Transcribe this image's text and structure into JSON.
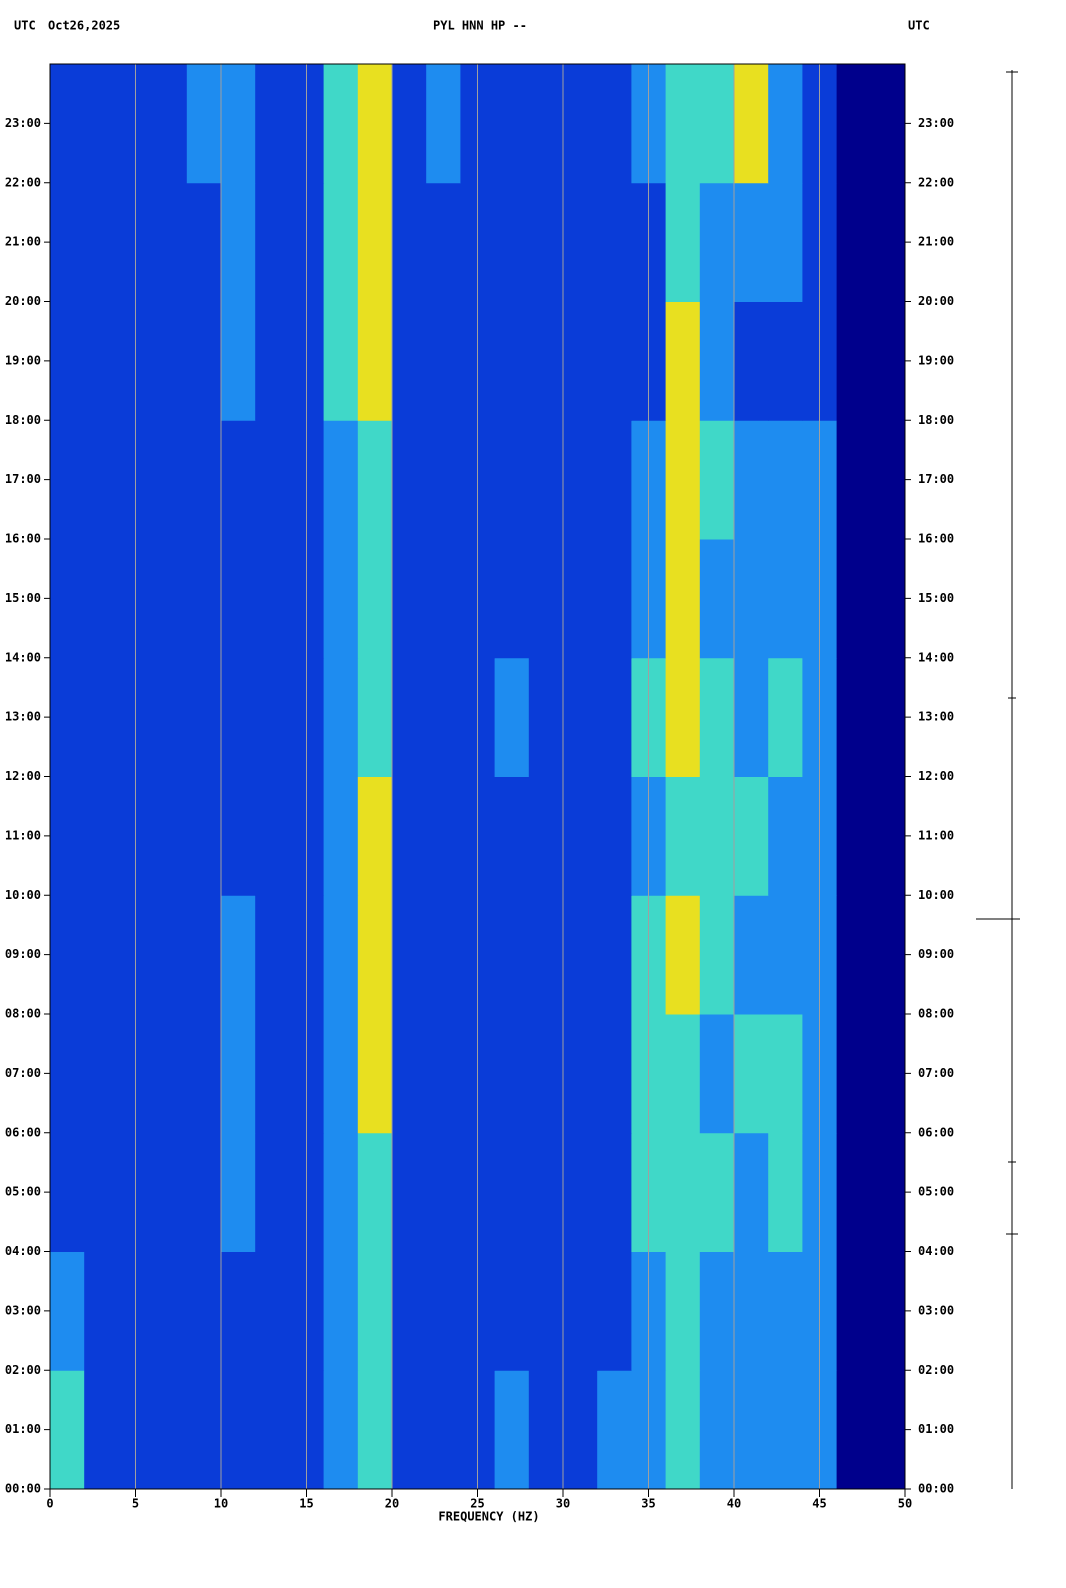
{
  "chart_data": {
    "type": "heatmap",
    "header_left": "UTC",
    "date": "Oct26,2025",
    "title": "PYL HNN HP --",
    "header_right": "UTC",
    "x_label": "FREQUENCY (HZ)",
    "xlim": [
      0,
      50
    ],
    "xticks": [
      0,
      5,
      10,
      15,
      20,
      25,
      30,
      35,
      40,
      45,
      50
    ],
    "ylim": [
      0,
      24
    ],
    "yticks": [
      {
        "value": 0,
        "label": "00:00"
      },
      {
        "value": 1,
        "label": "01:00"
      },
      {
        "value": 2,
        "label": "02:00"
      },
      {
        "value": 3,
        "label": "03:00"
      },
      {
        "value": 4,
        "label": "04:00"
      },
      {
        "value": 5,
        "label": "05:00"
      },
      {
        "value": 6,
        "label": "06:00"
      },
      {
        "value": 7,
        "label": "07:00"
      },
      {
        "value": 8,
        "label": "08:00"
      },
      {
        "value": 9,
        "label": "09:00"
      },
      {
        "value": 10,
        "label": "10:00"
      },
      {
        "value": 11,
        "label": "11:00"
      },
      {
        "value": 12,
        "label": "12:00"
      },
      {
        "value": 13,
        "label": "13:00"
      },
      {
        "value": 14,
        "label": "14:00"
      },
      {
        "value": 15,
        "label": "15:00"
      },
      {
        "value": 16,
        "label": "16:00"
      },
      {
        "value": 17,
        "label": "17:00"
      },
      {
        "value": 18,
        "label": "18:00"
      },
      {
        "value": 19,
        "label": "19:00"
      },
      {
        "value": 20,
        "label": "20:00"
      },
      {
        "value": 21,
        "label": "21:00"
      },
      {
        "value": 22,
        "label": "22:00"
      },
      {
        "value": 23,
        "label": "23:00"
      }
    ],
    "grid": true,
    "colors": [
      "#00008c",
      "#0a3cd8",
      "#1e8cf0",
      "#40d8c8",
      "#e8e020"
    ],
    "z": [
      [
        3,
        1,
        1,
        1,
        1,
        1,
        1,
        1,
        2,
        3,
        1,
        1,
        1,
        2,
        1,
        1,
        2,
        2,
        3,
        2,
        2,
        2,
        2,
        0,
        0
      ],
      [
        2,
        1,
        1,
        1,
        1,
        1,
        1,
        1,
        2,
        3,
        1,
        1,
        1,
        1,
        1,
        1,
        1,
        2,
        3,
        2,
        2,
        2,
        2,
        0,
        0
      ],
      [
        1,
        1,
        1,
        1,
        1,
        2,
        1,
        1,
        2,
        3,
        1,
        1,
        1,
        1,
        1,
        1,
        1,
        3,
        3,
        3,
        2,
        3,
        2,
        0,
        0
      ],
      [
        1,
        1,
        1,
        1,
        1,
        2,
        1,
        1,
        2,
        4,
        1,
        1,
        1,
        1,
        1,
        1,
        1,
        3,
        3,
        2,
        3,
        3,
        2,
        0,
        0
      ],
      [
        1,
        1,
        1,
        1,
        1,
        2,
        1,
        1,
        2,
        4,
        1,
        1,
        1,
        1,
        1,
        1,
        1,
        3,
        4,
        3,
        2,
        2,
        2,
        0,
        0
      ],
      [
        1,
        1,
        1,
        1,
        1,
        1,
        1,
        1,
        2,
        4,
        1,
        1,
        1,
        1,
        1,
        1,
        1,
        2,
        3,
        3,
        3,
        2,
        2,
        0,
        0
      ],
      [
        1,
        1,
        1,
        1,
        1,
        1,
        1,
        1,
        2,
        3,
        1,
        1,
        1,
        2,
        1,
        1,
        1,
        3,
        4,
        3,
        2,
        3,
        2,
        0,
        0
      ],
      [
        1,
        1,
        1,
        1,
        1,
        1,
        1,
        1,
        2,
        3,
        1,
        1,
        1,
        1,
        1,
        1,
        1,
        2,
        4,
        2,
        2,
        2,
        2,
        0,
        0
      ],
      [
        1,
        1,
        1,
        1,
        1,
        1,
        1,
        1,
        2,
        3,
        1,
        1,
        1,
        1,
        1,
        1,
        1,
        2,
        4,
        3,
        2,
        2,
        2,
        0,
        0
      ],
      [
        1,
        1,
        1,
        1,
        1,
        2,
        1,
        1,
        3,
        4,
        1,
        1,
        1,
        1,
        1,
        1,
        1,
        1,
        4,
        2,
        1,
        1,
        1,
        0,
        0
      ],
      [
        1,
        1,
        1,
        1,
        1,
        2,
        1,
        1,
        3,
        4,
        1,
        1,
        1,
        1,
        1,
        1,
        1,
        1,
        3,
        2,
        2,
        2,
        1,
        0,
        0
      ],
      [
        1,
        1,
        1,
        1,
        2,
        2,
        1,
        1,
        3,
        4,
        1,
        2,
        1,
        1,
        1,
        1,
        1,
        2,
        3,
        3,
        4,
        2,
        1,
        0,
        0
      ]
    ]
  }
}
